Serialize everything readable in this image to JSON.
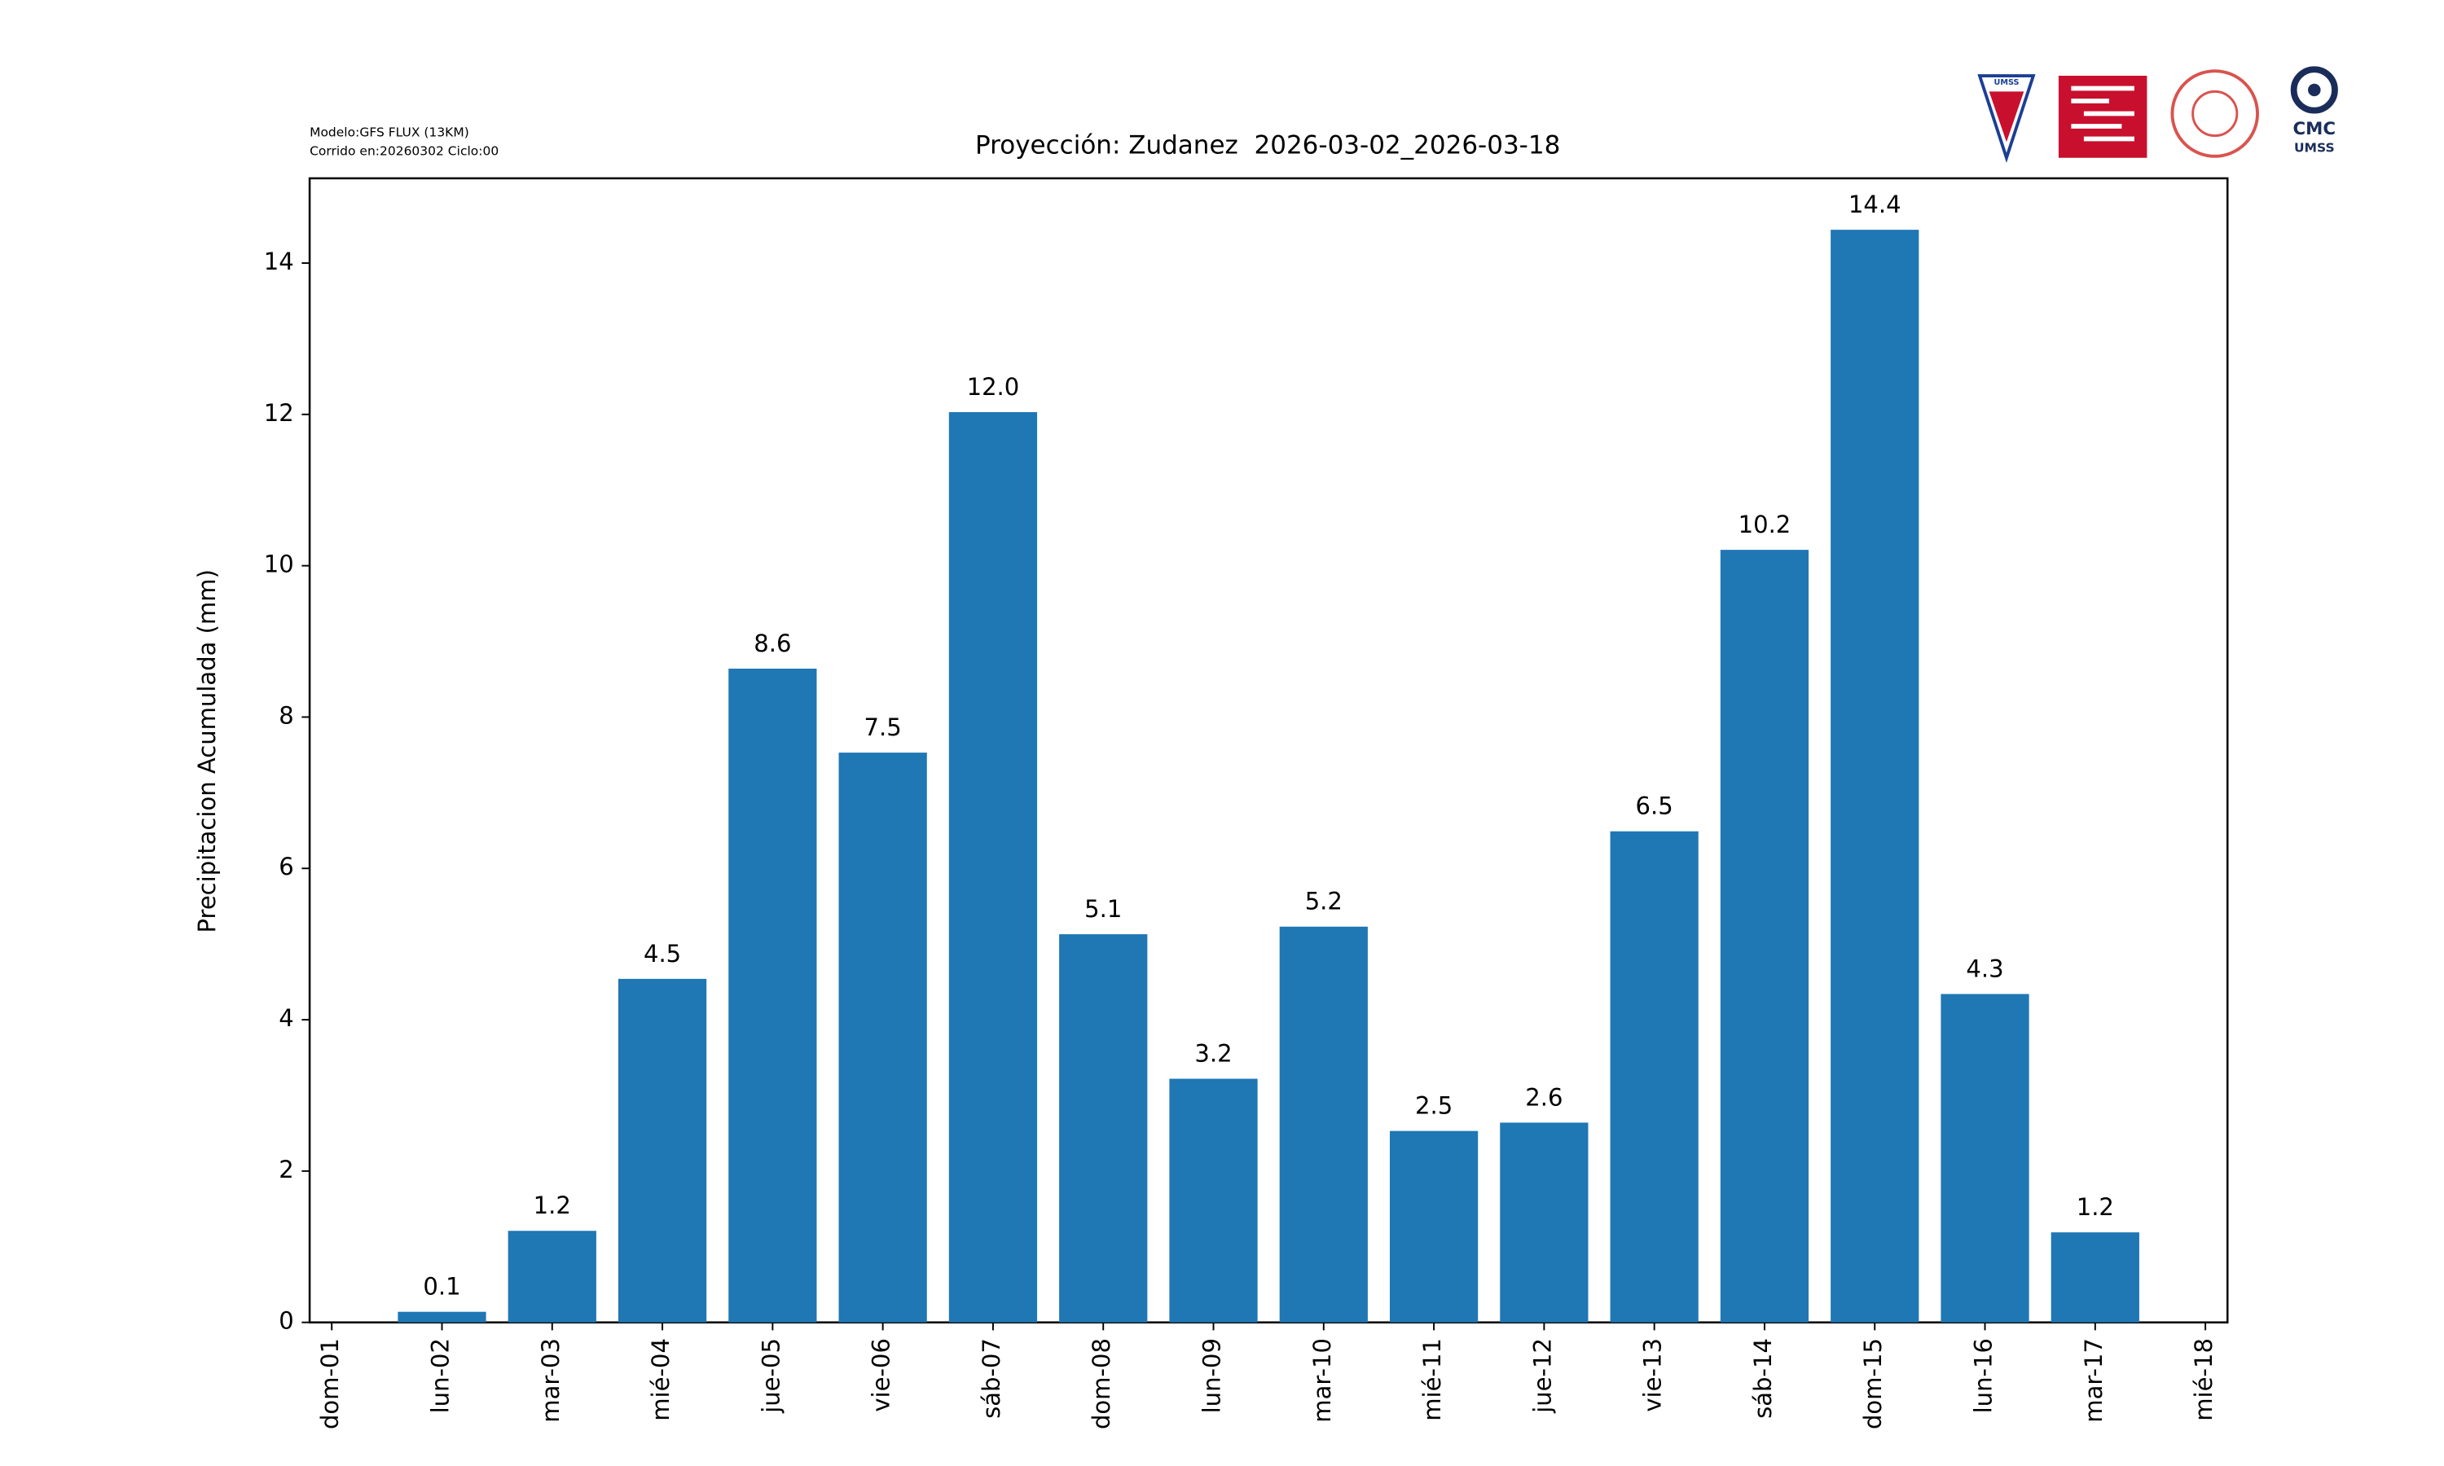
{
  "chart_data": {
    "type": "bar",
    "title": "Proyección: Zudanez  2026-03-02_2026-03-18",
    "model_info": [
      "Modelo:GFS FLUX (13KM)",
      "Corrido en:20260302 Ciclo:00"
    ],
    "ylabel": "Precipitacion Acumulada (mm)",
    "categories": [
      "dom-01",
      "lun-02",
      "mar-03",
      "mié-04",
      "jue-05",
      "vie-06",
      "sáb-07",
      "dom-08",
      "lun-09",
      "mar-10",
      "mié-11",
      "jue-12",
      "vie-13",
      "sáb-14",
      "dom-15",
      "lun-16",
      "mar-17",
      "mié-18"
    ],
    "values": [
      null,
      0.14,
      1.21,
      4.54,
      8.64,
      7.53,
      12.03,
      5.13,
      3.22,
      5.23,
      2.53,
      2.64,
      6.49,
      10.21,
      14.44,
      4.34,
      1.19,
      null
    ],
    "value_labels": [
      null,
      "0.1",
      "1.2",
      "4.5",
      "8.6",
      "7.5",
      "12.0",
      "5.1",
      "3.2",
      "5.2",
      "2.5",
      "2.6",
      "6.5",
      "10.2",
      "14.4",
      "4.3",
      "1.2",
      null
    ],
    "color": "#1f77b4",
    "ylim": [
      0,
      15.12
    ],
    "yticks": [
      0,
      2,
      4,
      6,
      8,
      10,
      12,
      14
    ],
    "grid": false
  },
  "logos": {
    "shield": "UMSS",
    "cmc": "CMC",
    "cmc_sub": "UMSS"
  }
}
